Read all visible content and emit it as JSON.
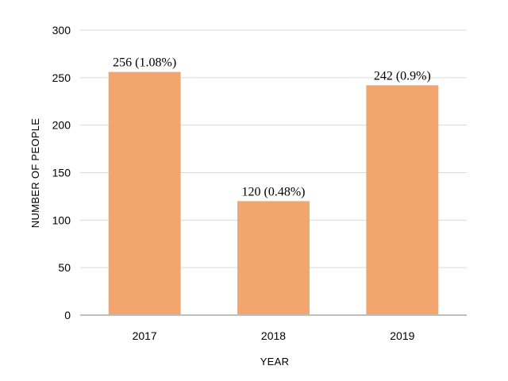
{
  "chart_data": {
    "type": "bar",
    "categories": [
      "2017",
      "2018",
      "2019"
    ],
    "values": [
      256,
      120,
      242
    ],
    "data_labels": [
      "256 (1.08%)",
      "120 (0.48%)",
      "242 (0.9%)"
    ],
    "xlabel": "YEAR",
    "ylabel": "NUMBER OF PEOPLE",
    "ylim": [
      0,
      300
    ],
    "yticks": [
      0,
      50,
      100,
      150,
      200,
      250,
      300
    ],
    "ytick_labels": [
      "0",
      "50",
      "100",
      "150",
      "200",
      "250",
      "300"
    ],
    "grid": true,
    "legend": false,
    "colors": {
      "bar": "#f2a56e",
      "grid": "#d9d9d9",
      "axis": "#bfbfbf"
    }
  }
}
